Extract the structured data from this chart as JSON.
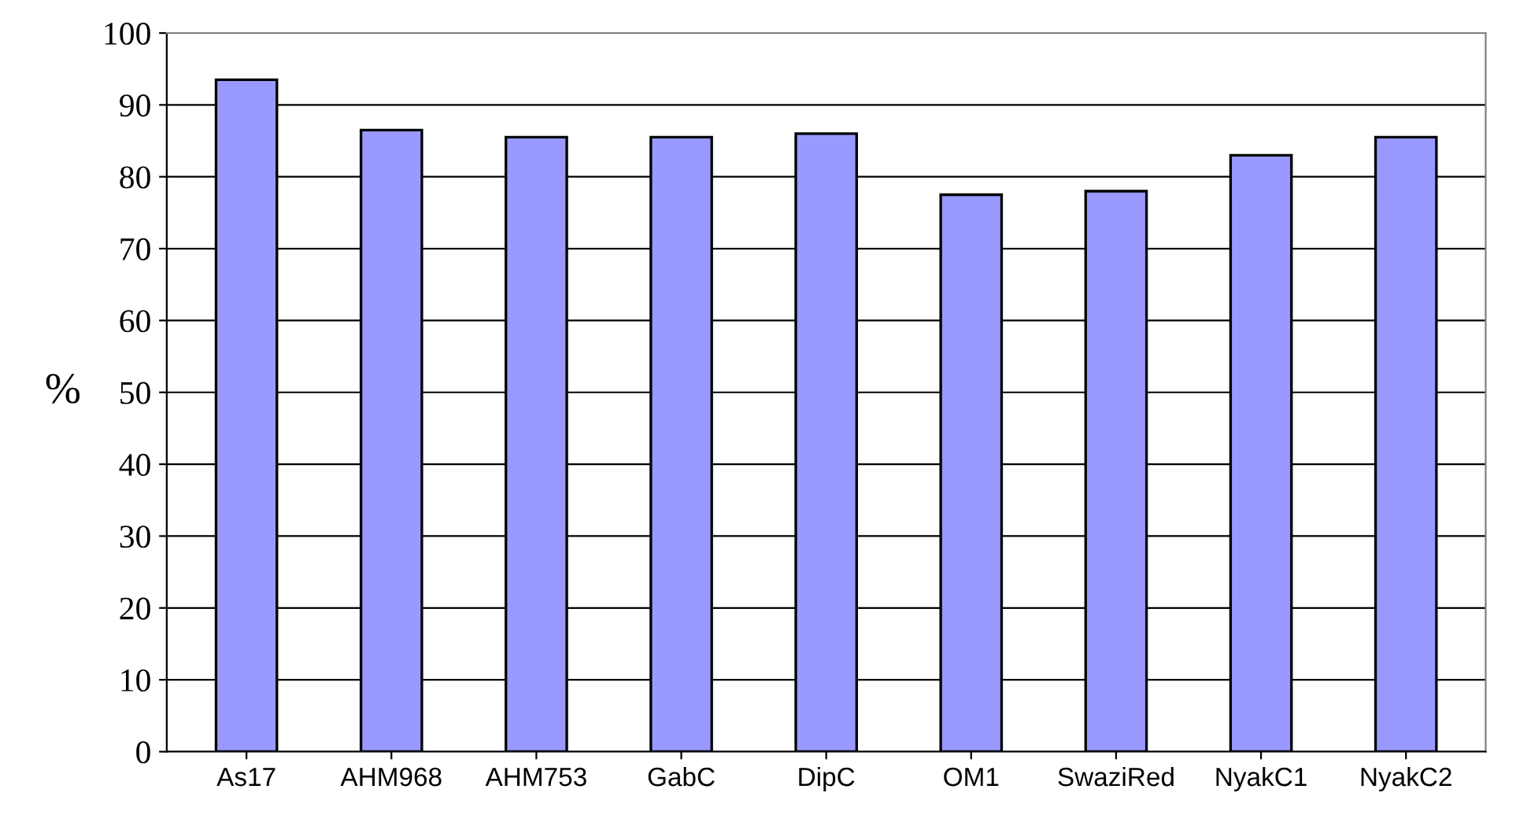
{
  "chart_data": {
    "type": "bar",
    "ylabel": "%",
    "categories": [
      "As17",
      "AHM968",
      "AHM753",
      "GabC",
      "DipC",
      "OM1",
      "SwaziRed",
      "NyakC1",
      "NyakC2"
    ],
    "values": [
      93.5,
      86.5,
      85.5,
      85.5,
      86,
      77.5,
      78,
      83,
      85.5
    ],
    "color": "#9999ff",
    "ylim": [
      0,
      100
    ],
    "yticks": [
      0,
      10,
      20,
      30,
      40,
      50,
      60,
      70,
      80,
      90,
      100
    ],
    "grid": "y"
  }
}
